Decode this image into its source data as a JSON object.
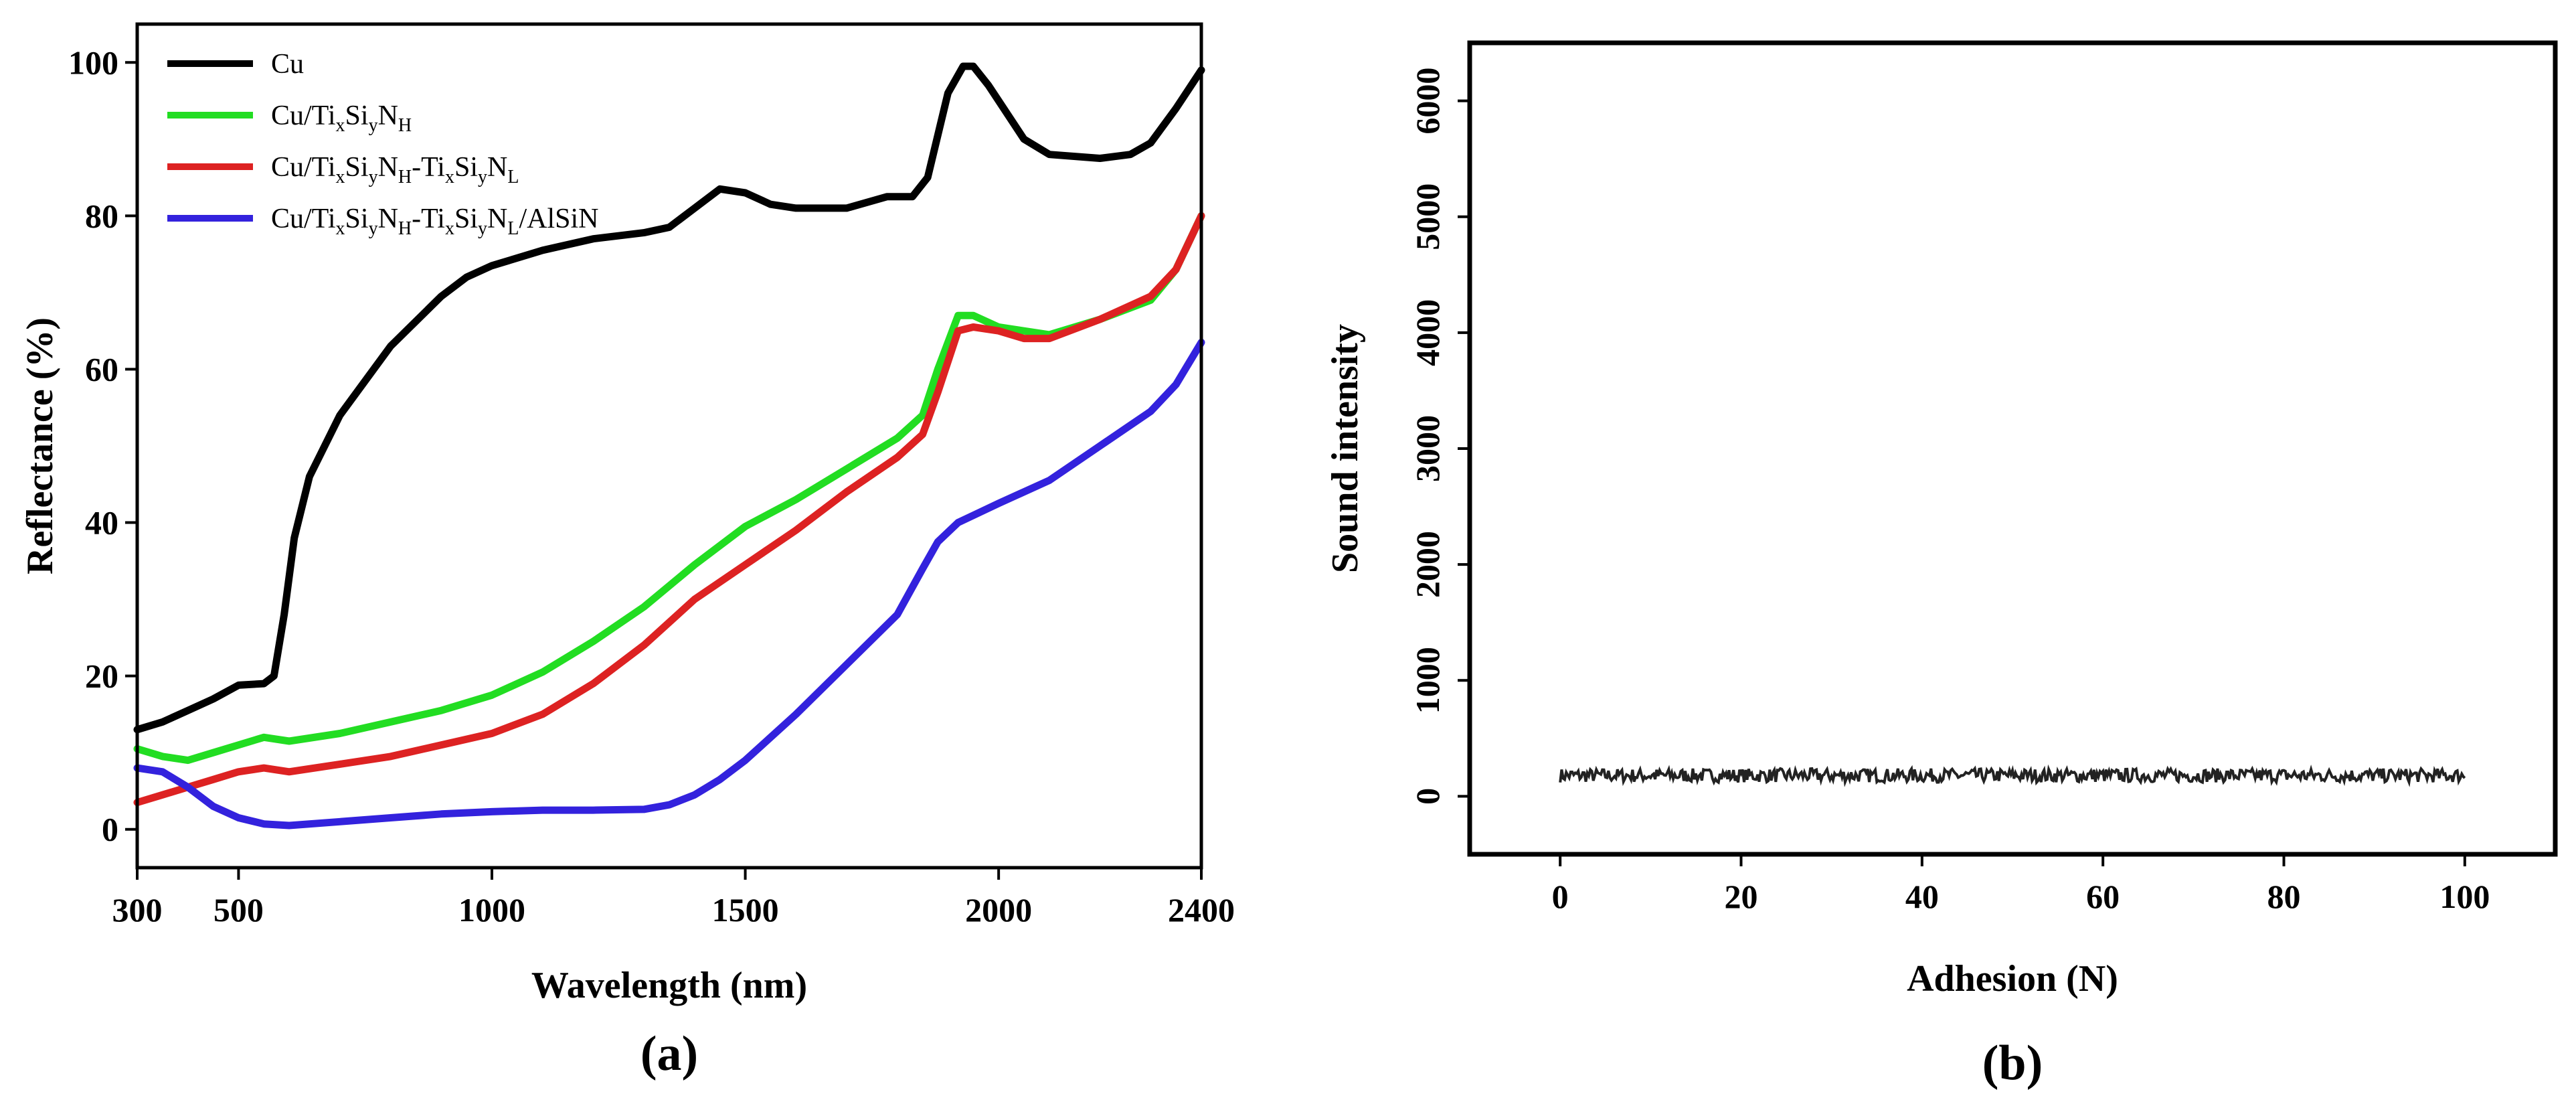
{
  "chart_data": [
    {
      "panel": "a",
      "panel_label": "(a)",
      "type": "line",
      "xlabel": "Wavelength (nm)",
      "ylabel": "Reflectance (%)",
      "xlim": [
        300,
        2400
      ],
      "ylim": [
        -5,
        105
      ],
      "x_ticks": [
        300,
        500,
        1000,
        1500,
        2000,
        2400
      ],
      "x_tick_labels": [
        "300",
        "500",
        "1000",
        "1500",
        "2000",
        "2400"
      ],
      "y_ticks": [
        0,
        20,
        40,
        60,
        80,
        100
      ],
      "y_tick_labels": [
        "0",
        "20",
        "40",
        "60",
        "80",
        "100"
      ],
      "legend_position": "top-left",
      "series": [
        {
          "name": "Cu",
          "legend": [
            {
              "t": "Cu"
            }
          ],
          "color": "#000000",
          "points": [
            [
              300,
              13
            ],
            [
              350,
              14
            ],
            [
              400,
              15.5
            ],
            [
              450,
              17
            ],
            [
              500,
              18.8
            ],
            [
              550,
              19
            ],
            [
              570,
              20
            ],
            [
              590,
              28
            ],
            [
              610,
              38
            ],
            [
              640,
              46
            ],
            [
              700,
              54
            ],
            [
              800,
              63
            ],
            [
              900,
              69.5
            ],
            [
              950,
              72
            ],
            [
              1000,
              73.5
            ],
            [
              1100,
              75.5
            ],
            [
              1200,
              77
            ],
            [
              1300,
              77.8
            ],
            [
              1350,
              78.5
            ],
            [
              1400,
              81
            ],
            [
              1450,
              83.5
            ],
            [
              1500,
              83
            ],
            [
              1550,
              81.5
            ],
            [
              1600,
              81
            ],
            [
              1700,
              81
            ],
            [
              1780,
              82.5
            ],
            [
              1830,
              82.5
            ],
            [
              1860,
              85
            ],
            [
              1900,
              96
            ],
            [
              1930,
              99.5
            ],
            [
              1950,
              99.5
            ],
            [
              1980,
              97
            ],
            [
              2050,
              90
            ],
            [
              2100,
              88
            ],
            [
              2200,
              87.5
            ],
            [
              2260,
              88
            ],
            [
              2300,
              89.5
            ],
            [
              2350,
              94
            ],
            [
              2400,
              99
            ]
          ]
        },
        {
          "name": "Cu/TixSiyNH",
          "legend": [
            {
              "t": "Cu/Ti"
            },
            {
              "t": "x",
              "sub": true
            },
            {
              "t": "Si"
            },
            {
              "t": "y",
              "sub": true
            },
            {
              "t": "N"
            },
            {
              "t": "H",
              "sub": true
            }
          ],
          "color": "#22dd22",
          "points": [
            [
              300,
              10.5
            ],
            [
              350,
              9.5
            ],
            [
              400,
              9
            ],
            [
              450,
              10
            ],
            [
              500,
              11
            ],
            [
              550,
              12
            ],
            [
              600,
              11.5
            ],
            [
              700,
              12.5
            ],
            [
              800,
              14
            ],
            [
              900,
              15.5
            ],
            [
              1000,
              17.5
            ],
            [
              1100,
              20.5
            ],
            [
              1200,
              24.5
            ],
            [
              1300,
              29
            ],
            [
              1400,
              34.5
            ],
            [
              1500,
              39.5
            ],
            [
              1600,
              43
            ],
            [
              1700,
              47
            ],
            [
              1800,
              51
            ],
            [
              1850,
              54
            ],
            [
              1880,
              60
            ],
            [
              1920,
              67
            ],
            [
              1950,
              67
            ],
            [
              2000,
              65.5
            ],
            [
              2100,
              64.5
            ],
            [
              2200,
              66.5
            ],
            [
              2300,
              69
            ],
            [
              2350,
              73
            ],
            [
              2400,
              80
            ]
          ]
        },
        {
          "name": "Cu/TixSiyNH-TixSiyNL",
          "legend": [
            {
              "t": "Cu/Ti"
            },
            {
              "t": "x",
              "sub": true
            },
            {
              "t": "Si"
            },
            {
              "t": "y",
              "sub": true
            },
            {
              "t": "N"
            },
            {
              "t": "H",
              "sub": true
            },
            {
              "t": "-Ti"
            },
            {
              "t": "x",
              "sub": true
            },
            {
              "t": "Si"
            },
            {
              "t": "y",
              "sub": true
            },
            {
              "t": "N"
            },
            {
              "t": "L",
              "sub": true
            }
          ],
          "color": "#dd2222",
          "points": [
            [
              300,
              3.5
            ],
            [
              350,
              4.5
            ],
            [
              400,
              5.5
            ],
            [
              450,
              6.5
            ],
            [
              500,
              7.5
            ],
            [
              550,
              8
            ],
            [
              600,
              7.5
            ],
            [
              700,
              8.5
            ],
            [
              800,
              9.5
            ],
            [
              900,
              11
            ],
            [
              1000,
              12.5
            ],
            [
              1100,
              15
            ],
            [
              1200,
              19
            ],
            [
              1300,
              24
            ],
            [
              1400,
              30
            ],
            [
              1500,
              34.5
            ],
            [
              1600,
              39
            ],
            [
              1700,
              44
            ],
            [
              1800,
              48.5
            ],
            [
              1850,
              51.5
            ],
            [
              1880,
              57
            ],
            [
              1920,
              65
            ],
            [
              1950,
              65.5
            ],
            [
              2000,
              65
            ],
            [
              2050,
              64
            ],
            [
              2100,
              64
            ],
            [
              2200,
              66.5
            ],
            [
              2300,
              69.5
            ],
            [
              2350,
              73
            ],
            [
              2400,
              80
            ]
          ]
        },
        {
          "name": "Cu/TixSiyNH-TixSiyNL/AlSiN",
          "legend": [
            {
              "t": "Cu/Ti"
            },
            {
              "t": "x",
              "sub": true
            },
            {
              "t": "Si"
            },
            {
              "t": "y",
              "sub": true
            },
            {
              "t": "N"
            },
            {
              "t": "H",
              "sub": true
            },
            {
              "t": "-Ti"
            },
            {
              "t": "x",
              "sub": true
            },
            {
              "t": "Si"
            },
            {
              "t": "y",
              "sub": true
            },
            {
              "t": "N"
            },
            {
              "t": "L",
              "sub": true
            },
            {
              "t": "/AlSiN"
            }
          ],
          "color": "#3322dd",
          "points": [
            [
              300,
              8
            ],
            [
              350,
              7.5
            ],
            [
              400,
              5.5
            ],
            [
              450,
              3
            ],
            [
              500,
              1.5
            ],
            [
              550,
              0.7
            ],
            [
              600,
              0.5
            ],
            [
              700,
              1
            ],
            [
              800,
              1.5
            ],
            [
              900,
              2
            ],
            [
              1000,
              2.3
            ],
            [
              1100,
              2.5
            ],
            [
              1200,
              2.5
            ],
            [
              1300,
              2.6
            ],
            [
              1350,
              3.2
            ],
            [
              1400,
              4.5
            ],
            [
              1450,
              6.5
            ],
            [
              1500,
              9
            ],
            [
              1600,
              15
            ],
            [
              1700,
              21.5
            ],
            [
              1800,
              28
            ],
            [
              1850,
              34
            ],
            [
              1880,
              37.5
            ],
            [
              1920,
              40
            ],
            [
              2000,
              42.5
            ],
            [
              2100,
              45.5
            ],
            [
              2200,
              50
            ],
            [
              2300,
              54.5
            ],
            [
              2350,
              58
            ],
            [
              2400,
              63.5
            ]
          ]
        }
      ]
    },
    {
      "panel": "b",
      "panel_label": "(b)",
      "type": "line",
      "xlabel": "Adhesion (N)",
      "ylabel": "Sound intensity",
      "xlim": [
        -10,
        110
      ],
      "ylim": [
        -500,
        6500
      ],
      "x_ticks": [
        0,
        20,
        40,
        60,
        80,
        100
      ],
      "x_tick_labels": [
        "0",
        "20",
        "40",
        "60",
        "80",
        "100"
      ],
      "y_ticks": [
        0,
        1000,
        2000,
        3000,
        4000,
        5000,
        6000
      ],
      "y_tick_labels": [
        "0",
        "1000",
        "2000",
        "3000",
        "4000",
        "5000",
        "6000"
      ],
      "series": [
        {
          "name": "Sound intensity",
          "color": "#222222",
          "x_start": 0,
          "x_end": 100,
          "baseline": 180,
          "noise_amplitude": 60
        }
      ]
    }
  ]
}
